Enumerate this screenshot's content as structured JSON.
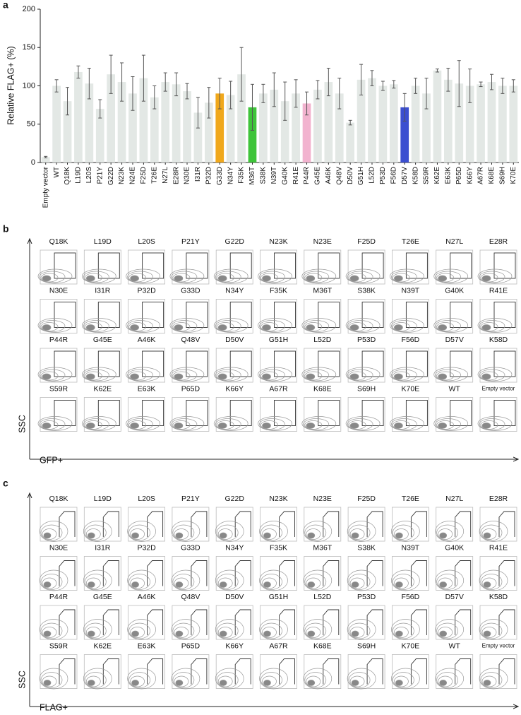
{
  "panel_labels": [
    "a",
    "b",
    "c"
  ],
  "chart_data": {
    "type": "bar",
    "y_label": "Relative FLAG+ (%)",
    "categories": [
      "Empty vector",
      "WT",
      "Q18K",
      "L19D",
      "L20S",
      "P21Y",
      "G22D",
      "N23K",
      "N24E",
      "F25D",
      "T26E",
      "N27L",
      "E28R",
      "N30E",
      "I31R",
      "P32D",
      "G33D",
      "N34Y",
      "F35K",
      "M36T",
      "S38K",
      "N39T",
      "G40K",
      "R41E",
      "P44R",
      "G45E",
      "A46K",
      "Q48V",
      "D50V",
      "G51H",
      "L52D",
      "P53D",
      "F56D",
      "D57V",
      "K58D",
      "S59R",
      "K62E",
      "E63K",
      "P65D",
      "K66Y",
      "A67R",
      "K68E",
      "S69H",
      "K70E"
    ],
    "values": [
      7,
      100,
      80,
      118,
      103,
      70,
      115,
      105,
      90,
      110,
      85,
      105,
      102,
      93,
      65,
      78,
      90,
      88,
      115,
      72,
      90,
      95,
      80,
      90,
      77,
      95,
      105,
      90,
      52,
      108,
      110,
      100,
      102,
      72,
      100,
      90,
      120,
      108,
      103,
      100,
      102,
      105,
      100,
      100
    ],
    "errors": [
      1,
      8,
      18,
      8,
      20,
      12,
      25,
      25,
      22,
      30,
      15,
      12,
      15,
      10,
      20,
      20,
      20,
      18,
      35,
      30,
      12,
      22,
      25,
      18,
      15,
      12,
      18,
      20,
      3,
      20,
      10,
      6,
      5,
      18,
      10,
      20,
      2,
      15,
      30,
      22,
      3,
      10,
      10,
      8
    ],
    "colors": [
      "#e3e8e5",
      "#e3e8e5",
      "#e3e8e5",
      "#e3e8e5",
      "#e3e8e5",
      "#e3e8e5",
      "#e3e8e5",
      "#e3e8e5",
      "#e3e8e5",
      "#e3e8e5",
      "#e3e8e5",
      "#e3e8e5",
      "#e3e8e5",
      "#e3e8e5",
      "#e3e8e5",
      "#e3e8e5",
      "#f0a81c",
      "#e3e8e5",
      "#e3e8e5",
      "#3fc43a",
      "#e3e8e5",
      "#e3e8e5",
      "#e3e8e5",
      "#e3e8e5",
      "#f2b3cf",
      "#e3e8e5",
      "#e3e8e5",
      "#e3e8e5",
      "#e3e8e5",
      "#e3e8e5",
      "#e3e8e5",
      "#e3e8e5",
      "#e3e8e5",
      "#3b4fd0",
      "#e3e8e5",
      "#e3e8e5",
      "#e3e8e5",
      "#e3e8e5",
      "#e3e8e5",
      "#e3e8e5",
      "#e3e8e5",
      "#e3e8e5",
      "#e3e8e5",
      "#e3e8e5"
    ],
    "ylim": [
      0,
      200
    ],
    "yticks": [
      0,
      50,
      100,
      150,
      200
    ]
  },
  "panel_b": {
    "y_label": "SSC",
    "x_label": "GFP+",
    "samples": [
      "Q18K",
      "L19D",
      "L20S",
      "P21Y",
      "G22D",
      "N23K",
      "N23E",
      "F25D",
      "T26E",
      "N27L",
      "E28R",
      "N30E",
      "I31R",
      "P32D",
      "G33D",
      "N34Y",
      "F35K",
      "M36T",
      "S38K",
      "N39T",
      "G40K",
      "R41E",
      "P44R",
      "G45E",
      "A46K",
      "Q48V",
      "D50V",
      "G51H",
      "L52D",
      "P53D",
      "F56D",
      "D57V",
      "K58D",
      "S59R",
      "K62E",
      "E63K",
      "P65D",
      "K66Y",
      "A67R",
      "K68E",
      "S69H",
      "K70E",
      "WT",
      "Empty vector"
    ]
  },
  "panel_c": {
    "y_label": "SSC",
    "x_label": "FLAG+",
    "samples": [
      "Q18K",
      "L19D",
      "L20S",
      "P21Y",
      "G22D",
      "N23K",
      "N23E",
      "F25D",
      "T26E",
      "N27L",
      "E28R",
      "N30E",
      "I31R",
      "P32D",
      "G33D",
      "N34Y",
      "F35K",
      "M36T",
      "S38K",
      "N39T",
      "G40K",
      "R41E",
      "P44R",
      "G45E",
      "A46K",
      "Q48V",
      "D50V",
      "G51H",
      "L52D",
      "P53D",
      "F56D",
      "D57V",
      "K58D",
      "S59R",
      "K62E",
      "E63K",
      "P65D",
      "K66Y",
      "A67R",
      "K68E",
      "S69H",
      "K70E",
      "WT",
      "Empty vector"
    ]
  }
}
